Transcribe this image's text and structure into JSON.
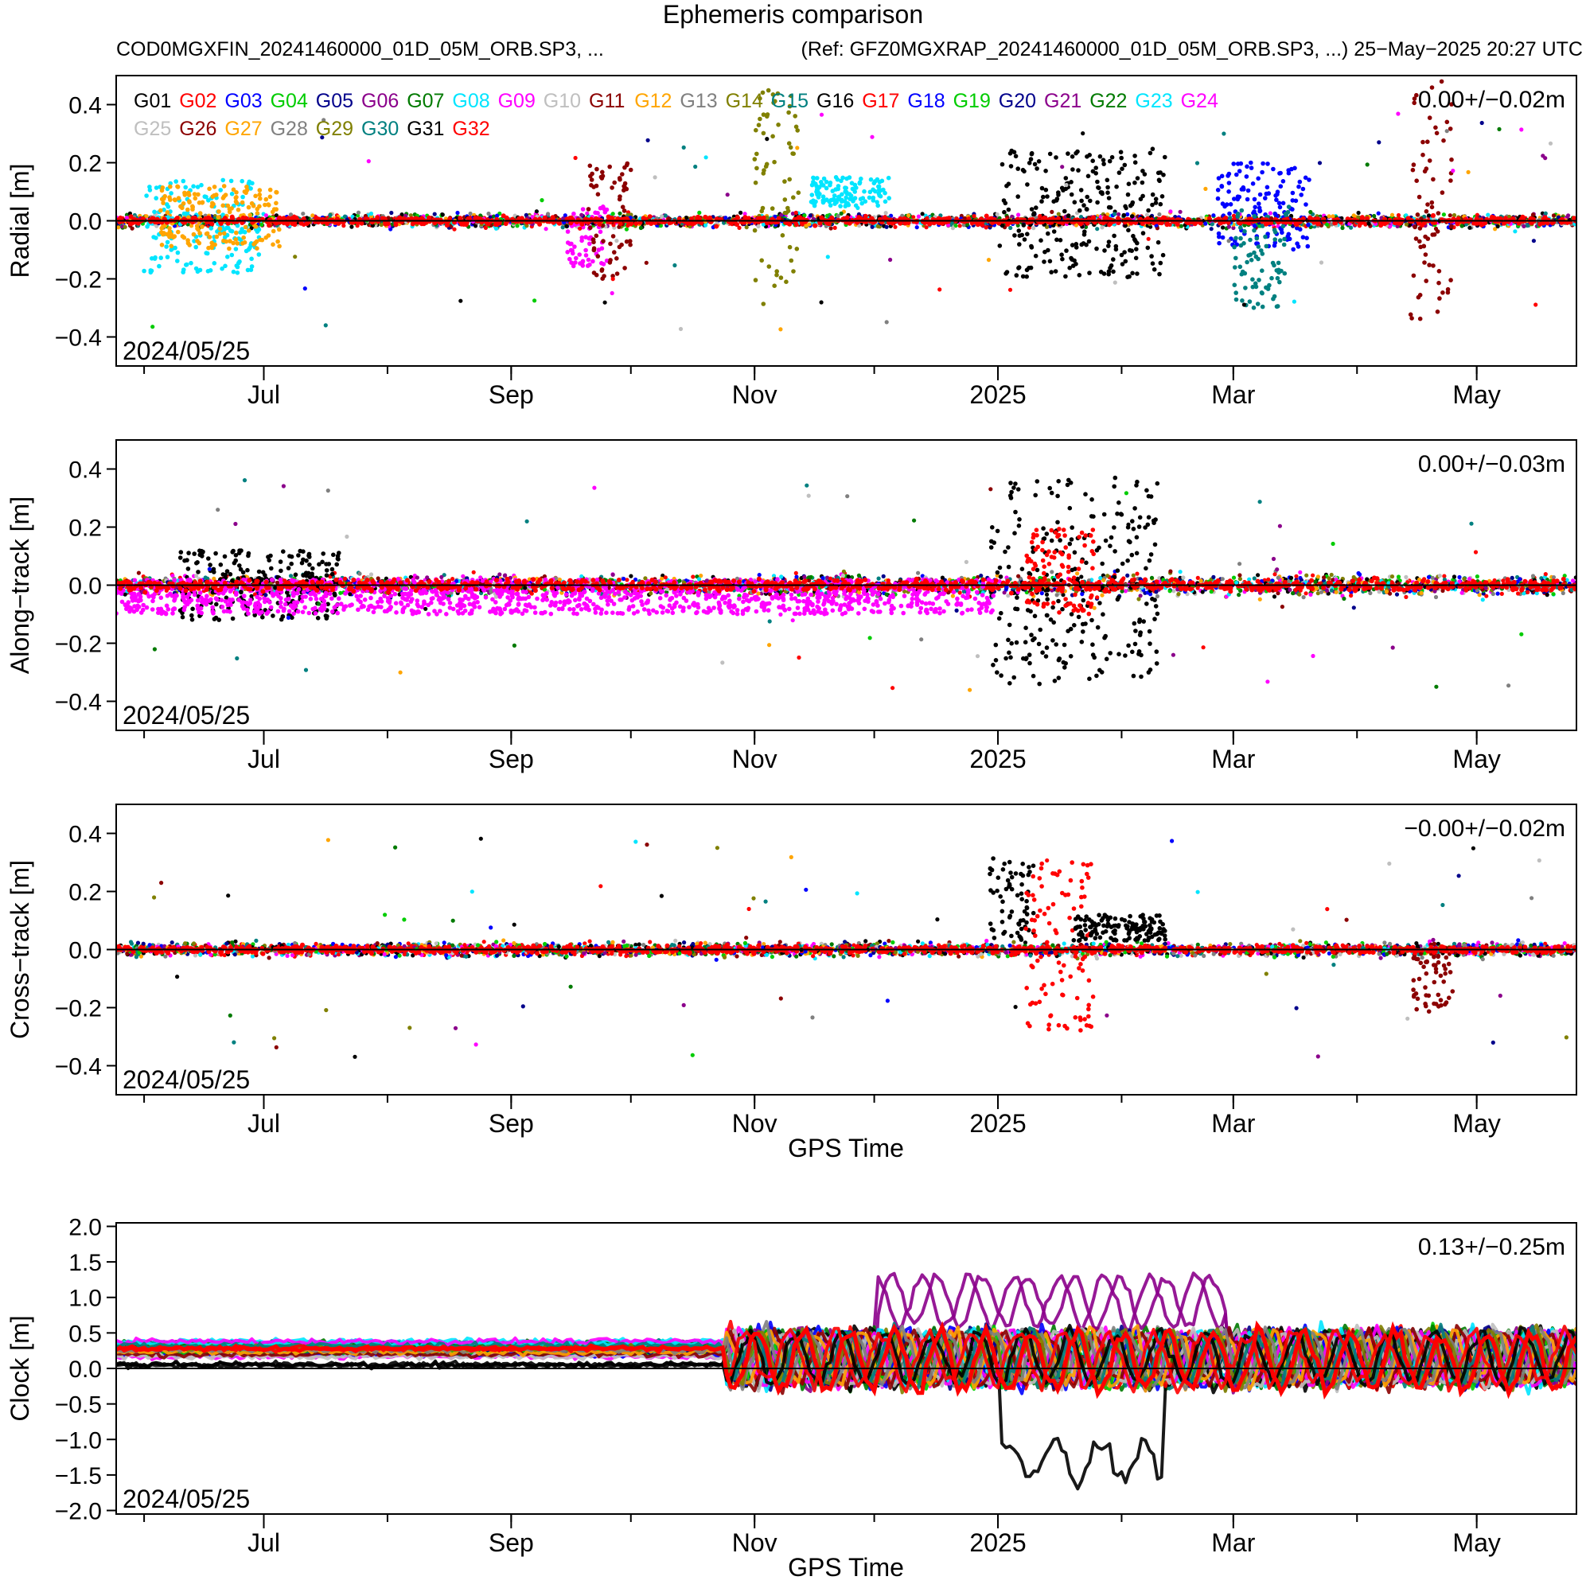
{
  "header": {
    "title": "Ephemeris comparison",
    "source": "COD0MGXFIN_20241460000_01D_05M_ORB.SP3, ...",
    "reference_and_timestamp": "(Ref: GFZ0MGXRAP_20241460000_01D_05M_ORB.SP3, ...) 25−May−2025 20:27 UTC"
  },
  "legend": {
    "placement": "top-left of first panel",
    "entries": [
      {
        "name": "G01",
        "color": "#000000"
      },
      {
        "name": "G02",
        "color": "#ff0000"
      },
      {
        "name": "G03",
        "color": "#0000ff"
      },
      {
        "name": "G04",
        "color": "#00cc00"
      },
      {
        "name": "G05",
        "color": "#00008b"
      },
      {
        "name": "G06",
        "color": "#8b008b"
      },
      {
        "name": "G07",
        "color": "#007a00"
      },
      {
        "name": "G08",
        "color": "#00e5ff"
      },
      {
        "name": "G09",
        "color": "#ff00ff"
      },
      {
        "name": "G10",
        "color": "#bfbfbf"
      },
      {
        "name": "G11",
        "color": "#8b0000"
      },
      {
        "name": "G12",
        "color": "#ffa500"
      },
      {
        "name": "G13",
        "color": "#808080"
      },
      {
        "name": "G14",
        "color": "#808000"
      },
      {
        "name": "G15",
        "color": "#008080"
      },
      {
        "name": "G16",
        "color": "#000000"
      },
      {
        "name": "G17",
        "color": "#ff0000"
      },
      {
        "name": "G18",
        "color": "#0000ff"
      },
      {
        "name": "G19",
        "color": "#00cc00"
      },
      {
        "name": "G20",
        "color": "#00008b"
      },
      {
        "name": "G21",
        "color": "#8b008b"
      },
      {
        "name": "G22",
        "color": "#007a00"
      },
      {
        "name": "G23",
        "color": "#00e5ff"
      },
      {
        "name": "G24",
        "color": "#ff00ff"
      },
      {
        "name": "G25",
        "color": "#bfbfbf"
      },
      {
        "name": "G26",
        "color": "#8b0000"
      },
      {
        "name": "G27",
        "color": "#ffa500"
      },
      {
        "name": "G28",
        "color": "#808080"
      },
      {
        "name": "G29",
        "color": "#808000"
      },
      {
        "name": "G30",
        "color": "#008080"
      },
      {
        "name": "G31",
        "color": "#000000"
      },
      {
        "name": "G32",
        "color": "#ff0000"
      }
    ]
  },
  "chart_data": [
    {
      "type": "scatter",
      "ylabel": "Radial [m]",
      "xlabel": "",
      "xlim": [
        "2024-05-25",
        "2025-05-26"
      ],
      "ylim": [
        -0.5,
        0.5
      ],
      "yticks": [
        -0.4,
        -0.2,
        0.0,
        0.2,
        0.4
      ],
      "ytick_labels": [
        "−0.4",
        "−0.2",
        "0.0",
        "0.2",
        "0.4"
      ],
      "xticks": [
        "2024-07-01",
        "2024-09-01",
        "2024-11-01",
        "2025-01-01",
        "2025-03-01",
        "2025-05-01"
      ],
      "xtick_labels": [
        "Jul",
        "Sep",
        "Nov",
        "2025",
        "Mar",
        "May"
      ],
      "start_label": "2024/05/25",
      "stats": "0.00+/−0.02m",
      "zero_line": true,
      "grid": false,
      "spread": {
        "typical": 0.02,
        "max_outlier": 0.48
      },
      "excursions": [
        {
          "series": "G08",
          "from": "2024-06-01",
          "to": "2024-06-30",
          "range": [
            -0.18,
            0.14
          ]
        },
        {
          "series": "G12",
          "from": "2024-06-05",
          "to": "2024-07-05",
          "range": [
            -0.1,
            0.12
          ]
        },
        {
          "series": "G09",
          "from": "2024-09-15",
          "to": "2024-09-25",
          "range": [
            -0.16,
            0.05
          ]
        },
        {
          "series": "G11",
          "from": "2024-09-20",
          "to": "2024-10-01",
          "range": [
            -0.2,
            0.2
          ]
        },
        {
          "series": "G14",
          "from": "2024-11-01",
          "to": "2024-11-12",
          "range": [
            -0.3,
            0.45
          ]
        },
        {
          "series": "G08",
          "from": "2024-11-15",
          "to": "2024-12-05",
          "range": [
            0.05,
            0.15
          ]
        },
        {
          "series": "G16",
          "from": "2025-01-01",
          "to": "2025-02-12",
          "range": [
            -0.2,
            0.25
          ]
        },
        {
          "series": "G03",
          "from": "2025-02-25",
          "to": "2025-03-20",
          "range": [
            -0.1,
            0.2
          ]
        },
        {
          "series": "G15",
          "from": "2025-03-01",
          "to": "2025-03-15",
          "range": [
            -0.3,
            0.05
          ]
        },
        {
          "series": "G26",
          "from": "2025-04-14",
          "to": "2025-04-25",
          "range": [
            -0.37,
            0.48
          ]
        }
      ]
    },
    {
      "type": "scatter",
      "ylabel": "Along−track [m]",
      "xlabel": "",
      "xlim": [
        "2024-05-25",
        "2025-05-26"
      ],
      "ylim": [
        -0.5,
        0.5
      ],
      "yticks": [
        -0.4,
        -0.2,
        0.0,
        0.2,
        0.4
      ],
      "ytick_labels": [
        "−0.4",
        "−0.2",
        "0.0",
        "0.2",
        "0.4"
      ],
      "xticks": [
        "2024-07-01",
        "2024-09-01",
        "2024-11-01",
        "2025-01-01",
        "2025-03-01",
        "2025-05-01"
      ],
      "xtick_labels": [
        "Jul",
        "Sep",
        "Nov",
        "2025",
        "Mar",
        "May"
      ],
      "start_label": "2024/05/25",
      "stats": "0.00+/−0.03m",
      "zero_line": true,
      "grid": false,
      "spread": {
        "typical": 0.03,
        "max_outlier": 0.46
      },
      "excursions": [
        {
          "series": "G16",
          "from": "2024-06-10",
          "to": "2024-07-20",
          "range": [
            -0.12,
            0.12
          ]
        },
        {
          "series": "G09",
          "from": "2024-05-25",
          "to": "2024-12-31",
          "range": [
            -0.1,
            0.02
          ]
        },
        {
          "series": "G16",
          "from": "2024-12-30",
          "to": "2025-02-10",
          "range": [
            -0.34,
            0.37
          ]
        },
        {
          "series": "G02",
          "from": "2025-01-08",
          "to": "2025-01-25",
          "range": [
            -0.1,
            0.2
          ]
        }
      ]
    },
    {
      "type": "scatter",
      "ylabel": "Cross−track [m]",
      "xlabel": "GPS Time",
      "xlim": [
        "2024-05-25",
        "2025-05-26"
      ],
      "ylim": [
        -0.5,
        0.5
      ],
      "yticks": [
        -0.4,
        -0.2,
        0.0,
        0.2,
        0.4
      ],
      "ytick_labels": [
        "−0.4",
        "−0.2",
        "0.0",
        "0.2",
        "0.4"
      ],
      "xticks": [
        "2024-07-01",
        "2024-09-01",
        "2024-11-01",
        "2025-01-01",
        "2025-03-01",
        "2025-05-01"
      ],
      "xtick_labels": [
        "Jul",
        "Sep",
        "Nov",
        "2025",
        "Mar",
        "May"
      ],
      "start_label": "2024/05/25",
      "stats": "−0.00+/−0.02m",
      "zero_line": true,
      "grid": false,
      "spread": {
        "typical": 0.02,
        "max_outlier": 0.48
      },
      "excursions": [
        {
          "series": "G16",
          "from": "2024-12-30",
          "to": "2025-01-10",
          "range": [
            0.03,
            0.32
          ]
        },
        {
          "series": "G02",
          "from": "2025-01-08",
          "to": "2025-01-25",
          "range": [
            -0.28,
            0.3
          ]
        },
        {
          "series": "G16",
          "from": "2025-01-20",
          "to": "2025-02-12",
          "range": [
            0.03,
            0.12
          ]
        },
        {
          "series": "G26",
          "from": "2025-04-15",
          "to": "2025-04-25",
          "range": [
            -0.22,
            0.02
          ]
        }
      ]
    },
    {
      "type": "scatter",
      "ylabel": "Clock [m]",
      "xlabel": "GPS Time",
      "xlim": [
        "2024-05-25",
        "2025-05-26"
      ],
      "ylim": [
        -2.05,
        2.05
      ],
      "yticks": [
        -2.0,
        -1.5,
        -1.0,
        -0.5,
        0.0,
        0.5,
        1.0,
        1.5,
        2.0
      ],
      "ytick_labels": [
        "−2.0",
        "−1.5",
        "−1.0",
        "−0.5",
        "0.0",
        "0.5",
        "1.0",
        "1.5",
        "2.0"
      ],
      "xticks": [
        "2024-07-01",
        "2024-09-01",
        "2024-11-01",
        "2025-01-01",
        "2025-03-01",
        "2025-05-01"
      ],
      "xtick_labels": [
        "Jul",
        "Sep",
        "Nov",
        "2025",
        "Mar",
        "May"
      ],
      "start_label": "2024/05/25",
      "stats": "0.13+/−0.25m",
      "zero_line": true,
      "grid": false,
      "bands": [
        {
          "series": "G02",
          "from": "2024-05-25",
          "to": "2024-10-25",
          "range": [
            0.2,
            0.38
          ]
        },
        {
          "series": "G16",
          "from": "2024-05-25",
          "to": "2024-10-25",
          "range": [
            -0.02,
            0.15
          ]
        },
        {
          "series": "G06",
          "from": "2024-12-01",
          "to": "2025-02-28",
          "range": [
            0.5,
            1.5
          ]
        },
        {
          "series": "G16",
          "from": "2025-01-01",
          "to": "2025-02-12",
          "range": [
            -2.0,
            -0.9
          ]
        },
        {
          "series": "G02",
          "from": "2024-10-25",
          "to": "2025-05-26",
          "range": [
            -0.6,
            0.9
          ]
        }
      ]
    }
  ]
}
